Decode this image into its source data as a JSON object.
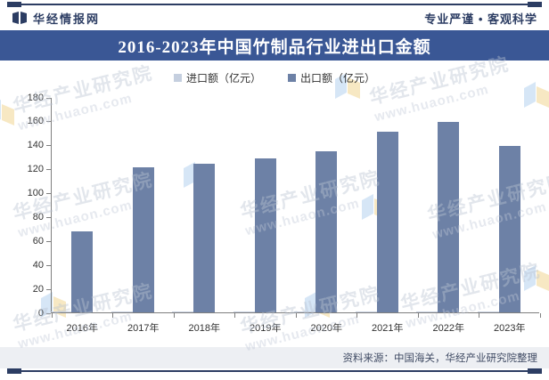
{
  "header": {
    "brand": "华经情报网",
    "slogan": "专业严谨 • 客观科学"
  },
  "title": "2016-2023年中国竹制品行业进出口金额",
  "chart_data": {
    "type": "bar",
    "title": "2016-2023年中国竹制品行业进出口金额",
    "categories": [
      "2016年",
      "2017年",
      "2018年",
      "2019年",
      "2020年",
      "2021年",
      "2022年",
      "2023年"
    ],
    "series": [
      {
        "name": "进口额（亿元）",
        "color": "#c5cfdf",
        "values": [
          1,
          1,
          1,
          1,
          1,
          1,
          1,
          1
        ]
      },
      {
        "name": "出口额（亿元）",
        "color": "#6d81a6",
        "values": [
          68,
          121,
          124,
          129,
          135,
          151,
          159,
          139
        ]
      }
    ],
    "xlabel": "",
    "ylabel": "",
    "ylim": [
      0,
      180
    ],
    "yticks": [
      0,
      20,
      40,
      60,
      80,
      100,
      120,
      140,
      160,
      180
    ],
    "grid": false,
    "legend_position": "top-center"
  },
  "watermark": {
    "line1": "华经产业研究院",
    "line2": "www.huaon.com"
  },
  "footer": {
    "source": "资料来源：中国海关，华经产业研究院整理"
  },
  "colors": {
    "navy": "#2c3d63",
    "title_bar_bg": "#3a5795",
    "export_bar": "#6d81a6",
    "import_swatch": "#c5cfdf",
    "footer_bg": "#edeff3",
    "axis": "#7f7f7f"
  }
}
